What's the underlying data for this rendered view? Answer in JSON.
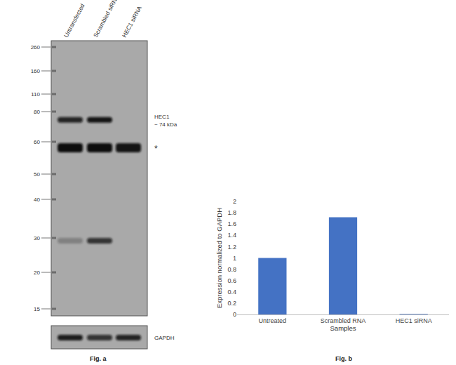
{
  "figure_a": {
    "caption": "Fig. a",
    "lanes": [
      "Untransfected",
      "Scrambled siRNA",
      "HEC1 siRNA"
    ],
    "markers": [
      260,
      160,
      110,
      80,
      60,
      50,
      40,
      30,
      20,
      15
    ],
    "bands": [
      {
        "label": "HEC1",
        "sublabel": "~ 74 kDa",
        "kda": 74,
        "intensity": [
          0.85,
          0.95,
          0
        ]
      },
      {
        "label": "*",
        "kda": 58,
        "intensity": [
          1,
          1,
          0.95
        ]
      },
      {
        "kda": 29,
        "intensity": [
          0.25,
          0.75,
          0
        ]
      }
    ],
    "loading_control": {
      "label": "GAPDH",
      "intensity": [
        0.9,
        0.75,
        0.85
      ]
    }
  },
  "chart_data": {
    "type": "bar",
    "caption": "Fig. b",
    "categories": [
      "Untreated",
      "Scrambled RNA",
      "HEC1 siRNA"
    ],
    "values": [
      1,
      1.72,
      0.01
    ],
    "color": "#4472c4",
    "x_label": "Samples",
    "y_label": "Expression normalized to GAPDH",
    "ylim": [
      0,
      2
    ],
    "yticks": [
      0,
      0.2,
      0.4,
      0.6,
      0.8,
      1,
      1.2,
      1.4,
      1.6,
      1.8,
      2
    ],
    "grid": false
  }
}
